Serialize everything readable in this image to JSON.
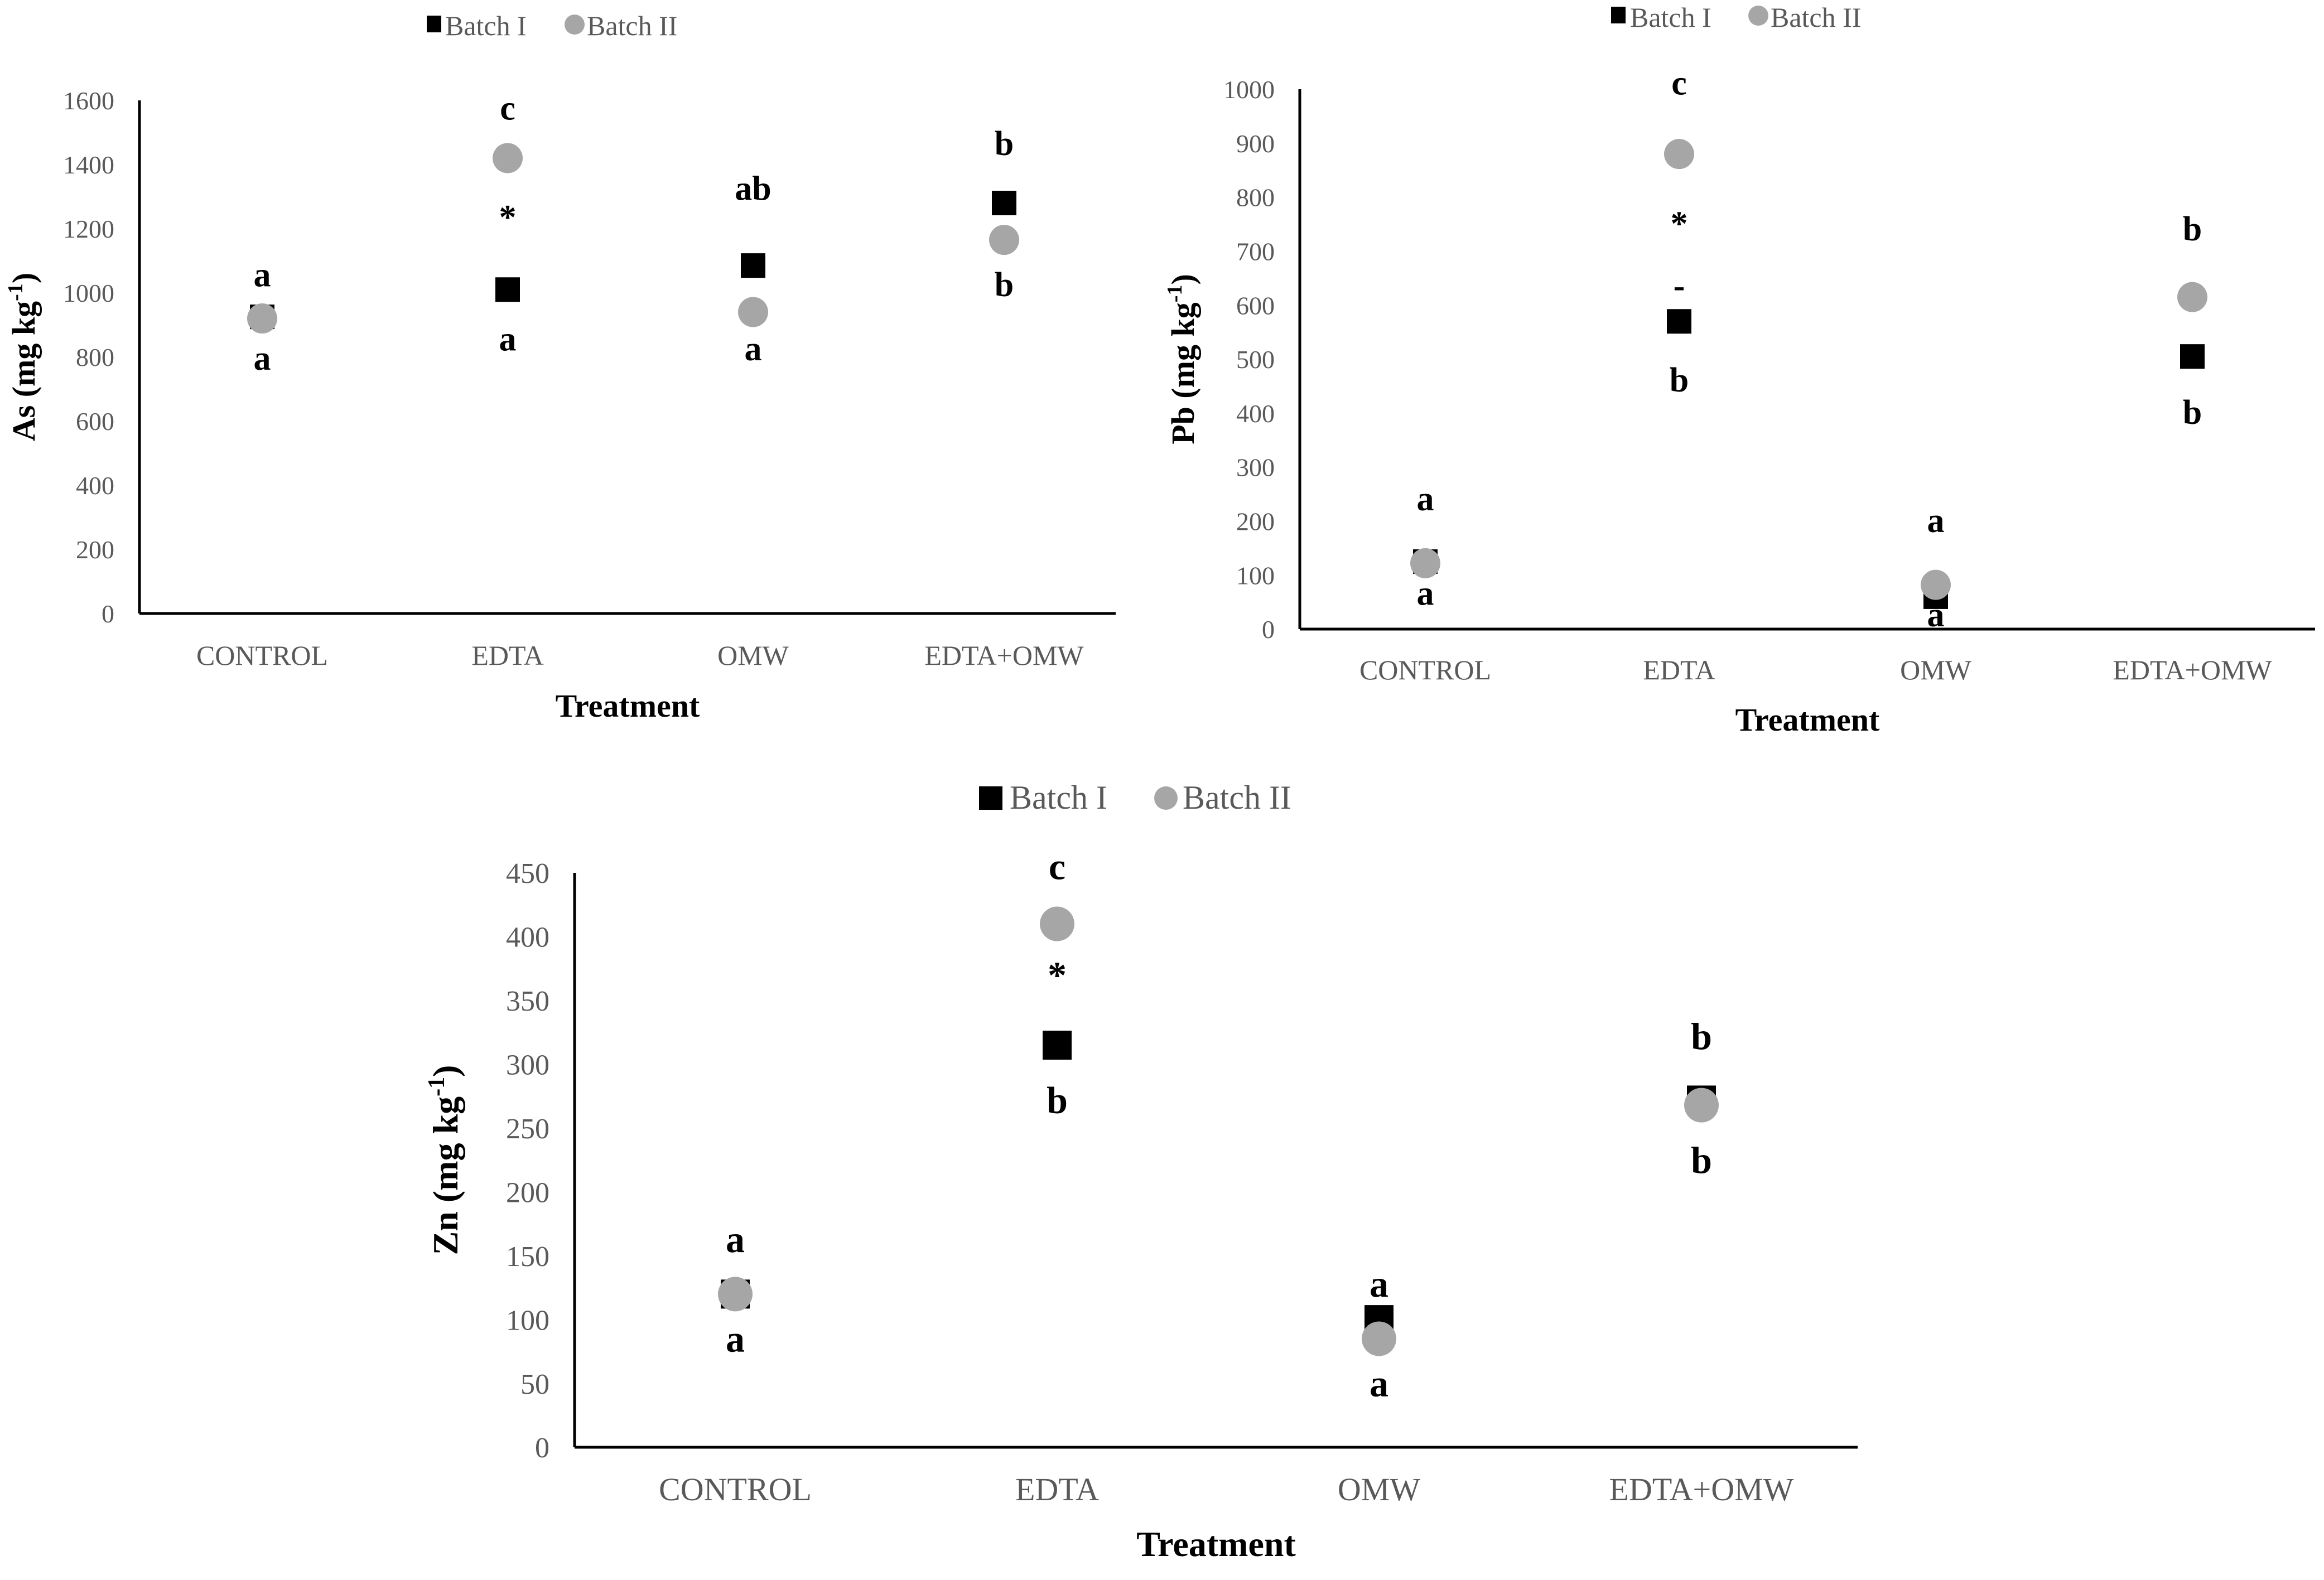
{
  "colors": {
    "batch_i": "#000000",
    "batch_ii": "#A6A6A6",
    "axis": "#000000",
    "tick_text": "#595959"
  },
  "chart_data": [
    {
      "type": "scatter",
      "categories": [
        "CONTROL",
        "EDTA",
        "OMW",
        "EDTA+OMW"
      ],
      "series": [
        {
          "name": "Batch I",
          "marker": "square",
          "values": [
            925,
            1010,
            1085,
            1280
          ]
        },
        {
          "name": "Batch II",
          "marker": "circle",
          "values": [
            920,
            1420,
            940,
            1165
          ]
        }
      ],
      "xlabel": "Treatment",
      "ylabel_main": "As (mg kg",
      "ylabel_sup": "-1",
      "ylabel_end": ")",
      "ylim": [
        0,
        1600
      ],
      "yticks": [
        0,
        200,
        400,
        600,
        800,
        1000,
        1200,
        1400,
        1600
      ],
      "grid": false,
      "legend_position": "top",
      "annotations": [
        {
          "text": "a",
          "category": 0,
          "y": 1020
        },
        {
          "text": "a",
          "category": 0,
          "y": 760
        },
        {
          "text": "c",
          "category": 1,
          "y": 1540
        },
        {
          "text": "*",
          "category": 1,
          "y": 1200
        },
        {
          "text": "a",
          "category": 1,
          "y": 820
        },
        {
          "text": "ab",
          "category": 2,
          "y": 1290
        },
        {
          "text": "a",
          "category": 2,
          "y": 790
        },
        {
          "text": "b",
          "category": 3,
          "y": 1430
        },
        {
          "text": "b",
          "category": 3,
          "y": 990
        }
      ]
    },
    {
      "type": "scatter",
      "categories": [
        "CONTROL",
        "EDTA",
        "OMW",
        "EDTA+OMW"
      ],
      "series": [
        {
          "name": "Batch I",
          "marker": "square",
          "values": [
            125,
            570,
            60,
            505
          ]
        },
        {
          "name": "Batch II",
          "marker": "circle",
          "values": [
            122,
            880,
            82,
            615
          ]
        }
      ],
      "xlabel": "Treatment",
      "ylabel_main": "Pb (mg kg",
      "ylabel_sup": "-1",
      "ylabel_end": ")",
      "ylim": [
        0,
        1000
      ],
      "yticks": [
        0,
        100,
        200,
        300,
        400,
        500,
        600,
        700,
        800,
        900,
        1000
      ],
      "grid": false,
      "legend_position": "top",
      "annotations": [
        {
          "text": "a",
          "category": 0,
          "y": 220
        },
        {
          "text": "a",
          "category": 0,
          "y": 45
        },
        {
          "text": "c",
          "category": 1,
          "y": 990
        },
        {
          "text": "*",
          "category": 1,
          "y": 730
        },
        {
          "text": "-",
          "category": 1,
          "y": 615
        },
        {
          "text": "b",
          "category": 1,
          "y": 440
        },
        {
          "text": "a",
          "category": 2,
          "y": 180
        },
        {
          "text": "a",
          "category": 2,
          "y": 5
        },
        {
          "text": "b",
          "category": 3,
          "y": 720
        },
        {
          "text": "b",
          "category": 3,
          "y": 380
        }
      ]
    },
    {
      "type": "scatter",
      "categories": [
        "CONTROL",
        "EDTA",
        "OMW",
        "EDTA+OMW"
      ],
      "series": [
        {
          "name": "Batch I",
          "marker": "square",
          "values": [
            120,
            315,
            100,
            272
          ]
        },
        {
          "name": "Batch II",
          "marker": "circle",
          "values": [
            120,
            410,
            85,
            268
          ]
        }
      ],
      "xlabel": "Treatment",
      "ylabel_main": "Zn (mg kg",
      "ylabel_sup": "-1",
      "ylabel_end": ")",
      "ylim": [
        0,
        450
      ],
      "yticks": [
        0,
        50,
        100,
        150,
        200,
        250,
        300,
        350,
        400,
        450
      ],
      "grid": false,
      "legend_position": "top",
      "annotations": [
        {
          "text": "a",
          "category": 0,
          "y": 153
        },
        {
          "text": "a",
          "category": 0,
          "y": 75
        },
        {
          "text": "c",
          "category": 1,
          "y": 445
        },
        {
          "text": "*",
          "category": 1,
          "y": 360
        },
        {
          "text": "b",
          "category": 1,
          "y": 262
        },
        {
          "text": "a",
          "category": 2,
          "y": 118
        },
        {
          "text": "a",
          "category": 2,
          "y": 40
        },
        {
          "text": "b",
          "category": 3,
          "y": 312
        },
        {
          "text": "b",
          "category": 3,
          "y": 215
        }
      ]
    }
  ]
}
